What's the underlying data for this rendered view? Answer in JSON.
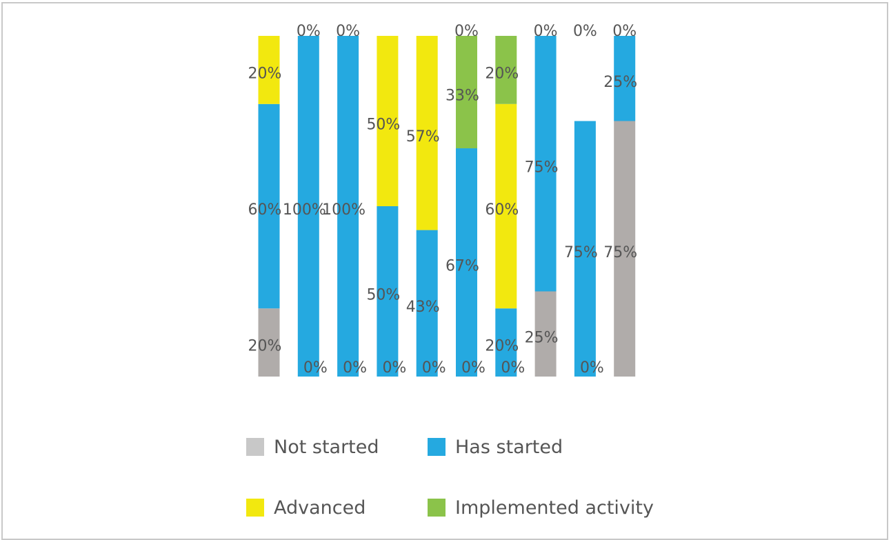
{
  "chart_data": {
    "type": "bar",
    "stacked": true,
    "normalized": true,
    "categories": [
      "",
      "",
      "",
      "",
      "",
      "",
      "",
      "",
      "",
      ""
    ],
    "ylim": [
      0,
      100
    ],
    "grid": false,
    "legend_placement": "bottom",
    "data_label_format": "{v}%",
    "series": [
      {
        "name": "Not started",
        "color": "#b0acaa",
        "legend_color": "#c8c8c8",
        "values": [
          20,
          0,
          0,
          0,
          0,
          0,
          0,
          25,
          0,
          75
        ]
      },
      {
        "name": "Has started",
        "color": "#25a9e0",
        "legend_color": "#25a9e0",
        "values": [
          60,
          100,
          100,
          50,
          43,
          67,
          20,
          75,
          75,
          25
        ]
      },
      {
        "name": "Advanced",
        "color": "#f2e80f",
        "legend_color": "#f2e80f",
        "values": [
          20,
          0,
          0,
          50,
          57,
          0,
          60,
          0,
          0,
          0
        ]
      },
      {
        "name": "Implemented activity",
        "color": "#8bc34a",
        "legend_color": "#8bc34a",
        "values": [
          0,
          0,
          0,
          0,
          0,
          33,
          20,
          0,
          0,
          0
        ]
      }
    ]
  },
  "legend": {
    "not_started": "Not started",
    "has_started": "Has started",
    "advanced": "Advanced",
    "implemented": "Implemented activity"
  },
  "colors": {
    "label_text": "#555555",
    "border": "#c8c8c8"
  }
}
